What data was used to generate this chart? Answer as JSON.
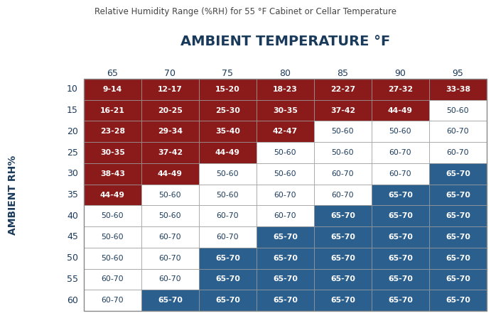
{
  "title": "Relative Humidity Range (%RH) for 55 °F Cabinet or Cellar Temperature",
  "col_header": "AMBIENT TEMPERATURE °F",
  "row_header": "AMBIENT RH%",
  "col_labels": [
    "65",
    "70",
    "75",
    "80",
    "85",
    "90",
    "95"
  ],
  "row_labels": [
    "10",
    "15",
    "20",
    "25",
    "30",
    "35",
    "40",
    "45",
    "50",
    "55",
    "60"
  ],
  "table_data": [
    [
      "9-14",
      "12-17",
      "15-20",
      "18-23",
      "22-27",
      "27-32",
      "33-38"
    ],
    [
      "16-21",
      "20-25",
      "25-30",
      "30-35",
      "37-42",
      "44-49",
      "50-60"
    ],
    [
      "23-28",
      "29-34",
      "35-40",
      "42-47",
      "50-60",
      "50-60",
      "60-70"
    ],
    [
      "30-35",
      "37-42",
      "44-49",
      "50-60",
      "50-60",
      "60-70",
      "60-70"
    ],
    [
      "38-43",
      "44-49",
      "50-60",
      "50-60",
      "60-70",
      "60-70",
      "65-70"
    ],
    [
      "44-49",
      "50-60",
      "50-60",
      "60-70",
      "60-70",
      "65-70",
      "65-70"
    ],
    [
      "50-60",
      "50-60",
      "60-70",
      "60-70",
      "65-70",
      "65-70",
      "65-70"
    ],
    [
      "50-60",
      "60-70",
      "60-70",
      "65-70",
      "65-70",
      "65-70",
      "65-70"
    ],
    [
      "50-60",
      "60-70",
      "65-70",
      "65-70",
      "65-70",
      "65-70",
      "65-70"
    ],
    [
      "60-70",
      "60-70",
      "65-70",
      "65-70",
      "65-70",
      "65-70",
      "65-70"
    ],
    [
      "60-70",
      "65-70",
      "65-70",
      "65-70",
      "65-70",
      "65-70",
      "65-70"
    ]
  ],
  "cell_colors": [
    [
      "dark_red",
      "dark_red",
      "dark_red",
      "dark_red",
      "dark_red",
      "dark_red",
      "dark_red"
    ],
    [
      "dark_red",
      "dark_red",
      "dark_red",
      "dark_red",
      "dark_red",
      "dark_red",
      "white"
    ],
    [
      "dark_red",
      "dark_red",
      "dark_red",
      "dark_red",
      "white",
      "white",
      "white"
    ],
    [
      "dark_red",
      "dark_red",
      "dark_red",
      "white",
      "white",
      "white",
      "white"
    ],
    [
      "dark_red",
      "dark_red",
      "white",
      "white",
      "white",
      "white",
      "blue"
    ],
    [
      "dark_red",
      "white",
      "white",
      "white",
      "white",
      "blue",
      "blue"
    ],
    [
      "white",
      "white",
      "white",
      "white",
      "blue",
      "blue",
      "blue"
    ],
    [
      "white",
      "white",
      "white",
      "blue",
      "blue",
      "blue",
      "blue"
    ],
    [
      "white",
      "white",
      "blue",
      "blue",
      "blue",
      "blue",
      "blue"
    ],
    [
      "white",
      "white",
      "blue",
      "blue",
      "blue",
      "blue",
      "blue"
    ],
    [
      "white",
      "blue",
      "blue",
      "blue",
      "blue",
      "blue",
      "blue"
    ]
  ],
  "color_map": {
    "dark_red": "#8B1A1A",
    "blue": "#2B5F8E",
    "white": "#FFFFFF"
  },
  "text_color_map": {
    "dark_red": "#FFFFFF",
    "blue": "#FFFFFF",
    "white": "#1a3a5c"
  },
  "background_color": "#FFFFFF",
  "header_text_color": "#1a3a5c",
  "title_color": "#444444",
  "col_header_color": "#1a3a5c",
  "row_header_color": "#1a3a5c",
  "border_color": "#999999",
  "title_fontsize": 8.5,
  "col_header_fontsize": 14,
  "col_label_fontsize": 9,
  "row_label_fontsize": 9,
  "row_header_fontsize": 10,
  "cell_fontsize": 7.8
}
